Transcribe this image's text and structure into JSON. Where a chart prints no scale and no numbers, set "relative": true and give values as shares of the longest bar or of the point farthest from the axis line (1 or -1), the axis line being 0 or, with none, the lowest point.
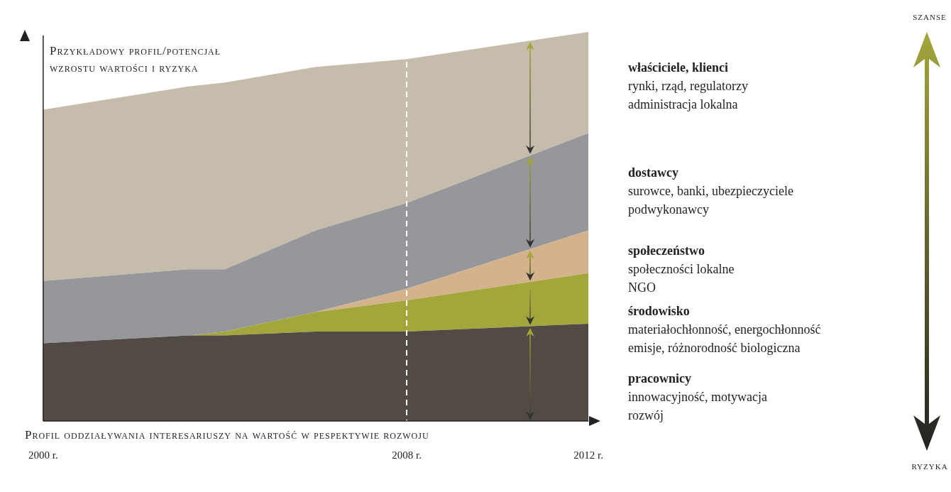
{
  "chart_data": {
    "type": "area",
    "title": "Przykładowy profil/potencjał wzrostu wartości i ryzyka",
    "xlabel": "Profil oddziaływania interesariuszy na wartość w pespektywie rozwoju",
    "relative": true,
    "stacked": true,
    "legend": false,
    "grid": false,
    "marker": "none",
    "x": [
      2000,
      2003.2,
      2004,
      2006,
      2008,
      2012
    ],
    "xlim": [
      2000,
      2012
    ],
    "xticks": [
      {
        "value": 2000,
        "label": "2000 r."
      },
      {
        "value": 2008,
        "label": "2008 r."
      },
      {
        "value": 2012,
        "label": "2012 r."
      }
    ],
    "series": [
      {
        "name": "pracownicy",
        "color": "#524a45",
        "values": [
          0.2,
          0.22,
          0.22,
          0.23,
          0.23,
          0.25
        ]
      },
      {
        "name": "środowisko",
        "color": "#a3a63a",
        "values": [
          0,
          0,
          0.01,
          0.05,
          0.08,
          0.13
        ]
      },
      {
        "name": "społeczeństwo",
        "color": "#d4b28b",
        "values": [
          0,
          0,
          0,
          0,
          0.03,
          0.11
        ]
      },
      {
        "name": "dostawcy",
        "color": "#96979a",
        "values": [
          0.16,
          0.17,
          0.16,
          0.21,
          0.22,
          0.25
        ]
      },
      {
        "name": "właściciele, klienci",
        "color": "#c5bcab",
        "values": [
          0.44,
          0.47,
          0.48,
          0.42,
          0.37,
          0.26
        ]
      }
    ],
    "ref_lines": [
      {
        "axis": "x",
        "value": 2008,
        "color": "#ffffff",
        "line_style": "dashed"
      }
    ],
    "annotations": [
      "innowacyjność, motywacja\nrozwój",
      "materiałochłonność, energochłonność\nemisje, różnorodność biologiczna",
      "społeczności lokalne\nNGO",
      "surowce, banki, ubezpieczyciele\npodwykonawcy",
      "rynki, rząd, regulatorzy\nadministracja lokalna",
      "szanse",
      "ryzyka"
    ]
  }
}
